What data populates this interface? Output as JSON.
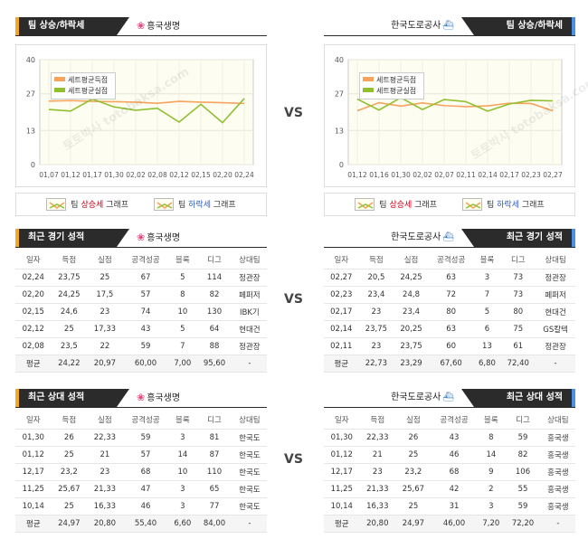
{
  "vs_label": "VS",
  "trend": {
    "header": "팀 상승/하락세",
    "legend": [
      "세트평균득점",
      "세트평균실점"
    ],
    "yticks": [
      "40",
      "27",
      "13",
      "0"
    ],
    "key": {
      "prefix": "팀",
      "up": "상승세",
      "down": "하락세",
      "suffix": "그래프"
    },
    "left": {
      "team": "흥국생명",
      "x": [
        "01,07",
        "01,12",
        "01,17",
        "01,30",
        "02,02",
        "02,08",
        "02,12",
        "02,15",
        "02,20",
        "02,24"
      ],
      "scored": [
        24.2,
        24.4,
        24.1,
        24.0,
        23.8,
        23.4,
        24.1,
        23.8,
        23.6,
        23.3
      ],
      "conceded": [
        21.0,
        20.4,
        25.0,
        22.0,
        20.7,
        21.5,
        16.2,
        23.0,
        16.0,
        25.2
      ]
    },
    "right": {
      "team": "한국도로공사",
      "x": [
        "01,12",
        "01,16",
        "01,30",
        "02,02",
        "02,07",
        "02,11",
        "02,14",
        "02,17",
        "02,23",
        "02,27"
      ],
      "scored": [
        20.5,
        23.6,
        22.3,
        23.5,
        22.5,
        22.1,
        22.4,
        23.4,
        23.3,
        20.5
      ],
      "conceded": [
        25.0,
        20.8,
        25.5,
        21.0,
        24.8,
        24.0,
        20.4,
        23.1,
        24.5,
        24.3
      ]
    }
  },
  "columns": [
    "일자",
    "득점",
    "실점",
    "공격성공",
    "블록",
    "디그",
    "상대팀"
  ],
  "recent": {
    "header": "최근 경기 성적",
    "left": {
      "team": "흥국생명",
      "rows": [
        [
          "02,24",
          "23,75",
          "25",
          "67",
          "5",
          "114",
          "정관장"
        ],
        [
          "02,20",
          "24,25",
          "17,5",
          "57",
          "8",
          "82",
          "페퍼저"
        ],
        [
          "02,15",
          "24,6",
          "23",
          "74",
          "10",
          "130",
          "IBK기"
        ],
        [
          "02,12",
          "25",
          "17,33",
          "43",
          "5",
          "64",
          "현대건"
        ],
        [
          "02,08",
          "23,5",
          "22",
          "59",
          "7",
          "88",
          "정관장"
        ]
      ],
      "avg": [
        "평균",
        "24,22",
        "20,97",
        "60,00",
        "7,00",
        "95,60",
        "-"
      ]
    },
    "right": {
      "team": "한국도로공사",
      "rows": [
        [
          "02,27",
          "20,5",
          "24,25",
          "63",
          "3",
          "73",
          "정관장"
        ],
        [
          "02,23",
          "23,4",
          "24,8",
          "72",
          "7",
          "73",
          "페퍼저"
        ],
        [
          "02,17",
          "23",
          "23,4",
          "80",
          "5",
          "80",
          "현대건"
        ],
        [
          "02,14",
          "23,75",
          "20,25",
          "63",
          "6",
          "75",
          "GS칼텍"
        ],
        [
          "02,11",
          "23",
          "23,75",
          "60",
          "13",
          "61",
          "정관장"
        ]
      ],
      "avg": [
        "평균",
        "22,73",
        "23,29",
        "67,60",
        "6,80",
        "72,40",
        "-"
      ]
    }
  },
  "h2h": {
    "header": "최근 상대 성적",
    "left": {
      "team": "흥국생명",
      "rows": [
        [
          "01,30",
          "26",
          "22,33",
          "59",
          "3",
          "81",
          "한국도"
        ],
        [
          "01,12",
          "25",
          "21",
          "57",
          "14",
          "87",
          "한국도"
        ],
        [
          "12,17",
          "23,2",
          "23",
          "68",
          "10",
          "110",
          "한국도"
        ],
        [
          "11,25",
          "25,67",
          "21,33",
          "47",
          "3",
          "65",
          "한국도"
        ],
        [
          "10,14",
          "25",
          "16,33",
          "46",
          "3",
          "77",
          "한국도"
        ]
      ],
      "avg": [
        "평균",
        "24,97",
        "20,80",
        "55,40",
        "6,60",
        "84,00",
        "-"
      ]
    },
    "right": {
      "team": "한국도로공사",
      "rows": [
        [
          "01,30",
          "22,33",
          "26",
          "43",
          "8",
          "59",
          "흥국생"
        ],
        [
          "01,12",
          "21",
          "25",
          "46",
          "14",
          "82",
          "흥국생"
        ],
        [
          "12,17",
          "23",
          "23,2",
          "68",
          "9",
          "106",
          "흥국생"
        ],
        [
          "11,25",
          "21,33",
          "25,67",
          "42",
          "2",
          "55",
          "흥국생"
        ],
        [
          "10,14",
          "16,33",
          "25",
          "31",
          "3",
          "59",
          "흥국생"
        ]
      ],
      "avg": [
        "평균",
        "20,80",
        "24,97",
        "46,00",
        "7,20",
        "72,20",
        "-"
      ]
    }
  },
  "watermark": "토토박사 totobaksa.com",
  "colors": {
    "scored": "#f7a35c",
    "conceded": "#90c030",
    "accent_left": "#f5a623",
    "accent_right": "#4a90e2"
  },
  "chart_data": [
    {
      "type": "line",
      "x": [
        "01,07",
        "01,12",
        "01,17",
        "01,30",
        "02,02",
        "02,08",
        "02,12",
        "02,15",
        "02,20",
        "02,24"
      ],
      "series": [
        {
          "name": "세트평균득점",
          "values": [
            24.2,
            24.4,
            24.1,
            24.0,
            23.8,
            23.4,
            24.1,
            23.8,
            23.6,
            23.3
          ]
        },
        {
          "name": "세트평균실점",
          "values": [
            21.0,
            20.4,
            25.0,
            22.0,
            20.7,
            21.5,
            16.2,
            23.0,
            16.0,
            25.2
          ]
        }
      ],
      "ylim": [
        0,
        40
      ]
    },
    {
      "type": "line",
      "x": [
        "01,12",
        "01,16",
        "01,30",
        "02,02",
        "02,07",
        "02,11",
        "02,14",
        "02,17",
        "02,23",
        "02,27"
      ],
      "series": [
        {
          "name": "세트평균득점",
          "values": [
            20.5,
            23.6,
            22.3,
            23.5,
            22.5,
            22.1,
            22.4,
            23.4,
            23.3,
            20.5
          ]
        },
        {
          "name": "세트평균실점",
          "values": [
            25.0,
            20.8,
            25.5,
            21.0,
            24.8,
            24.0,
            20.4,
            23.1,
            24.5,
            24.3
          ]
        }
      ],
      "ylim": [
        0,
        40
      ]
    }
  ]
}
